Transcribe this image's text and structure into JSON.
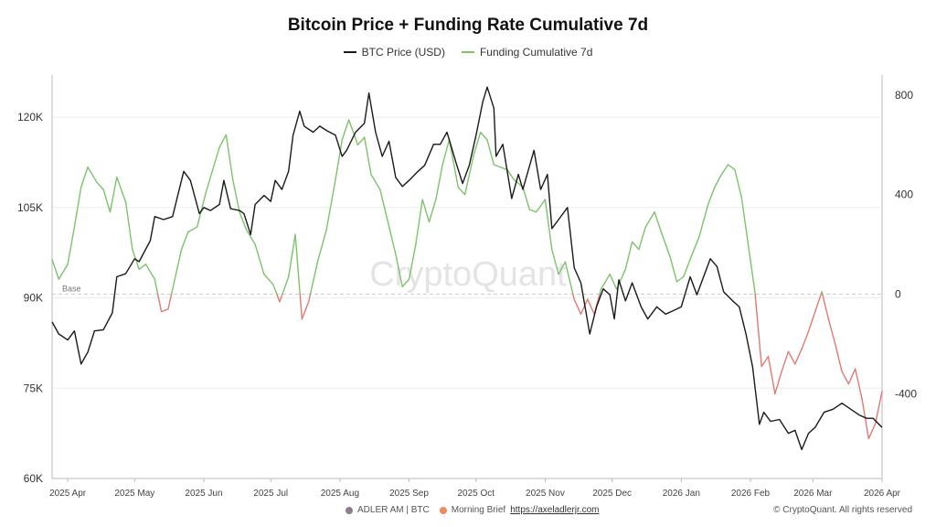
{
  "header": {
    "title": "Bitcoin Price + Funding Rate Cumulative 7d"
  },
  "legend": [
    {
      "label": "BTC Price (USD)",
      "color": "#1a1a1a"
    },
    {
      "label": "Funding Cumulative 7d",
      "color": "#7cc36a"
    }
  ],
  "watermark": "CryptoQuant",
  "base_label": "Base",
  "footer": {
    "author": "ADLER AM | BTC",
    "brief": "Morning Brief",
    "link": "https://axeladlerjr.com",
    "copyright": "© CryptoQuant. All rights reserved"
  },
  "colors": {
    "price": "#1a1a1a",
    "funding_positive": "#7cc36a",
    "funding_negative": "#e07a72",
    "grid": "#eeeeee",
    "base": "#cccccc"
  },
  "chart_data": {
    "type": "line",
    "title": "Bitcoin Price + Funding Rate Cumulative 7d",
    "x_ticks": [
      "2025 Apr",
      "2025 May",
      "2025 Jun",
      "2025 Jul",
      "2025 Aug",
      "2025 Sep",
      "2025 Oct",
      "2025 Nov",
      "2025 Dec",
      "2026 Jan",
      "2026 Feb",
      "2026 Mar",
      "2026 Apr"
    ],
    "y_left": {
      "ticks": [
        "60K",
        "75K",
        "90K",
        "105K",
        "120K"
      ],
      "values": [
        60000,
        75000,
        90000,
        105000,
        120000
      ],
      "range": [
        60000,
        127000
      ]
    },
    "y_right": {
      "ticks": [
        "-400",
        "0",
        "400",
        "800"
      ],
      "values": [
        -400,
        0,
        400,
        800
      ],
      "range": [
        -740,
        880
      ]
    },
    "base_line": 0,
    "x_range": [
      "2025-03-25",
      "2026-04-01"
    ],
    "series": [
      {
        "name": "BTC Price (USD)",
        "axis": "left",
        "points": [
          [
            "2025-03-25",
            86000
          ],
          [
            "2025-03-28",
            84000
          ],
          [
            "2025-04-01",
            83000
          ],
          [
            "2025-04-04",
            84500
          ],
          [
            "2025-04-07",
            79000
          ],
          [
            "2025-04-10",
            81000
          ],
          [
            "2025-04-13",
            84500
          ],
          [
            "2025-04-17",
            84700
          ],
          [
            "2025-04-21",
            87500
          ],
          [
            "2025-04-23",
            93500
          ],
          [
            "2025-04-27",
            94000
          ],
          [
            "2025-05-01",
            96500
          ],
          [
            "2025-05-03",
            96000
          ],
          [
            "2025-05-08",
            99500
          ],
          [
            "2025-05-10",
            103500
          ],
          [
            "2025-05-14",
            103000
          ],
          [
            "2025-05-18",
            103500
          ],
          [
            "2025-05-21",
            108000
          ],
          [
            "2025-05-23",
            111000
          ],
          [
            "2025-05-26",
            109500
          ],
          [
            "2025-05-30",
            104000
          ],
          [
            "2025-06-01",
            105000
          ],
          [
            "2025-06-04",
            104500
          ],
          [
            "2025-06-08",
            105500
          ],
          [
            "2025-06-10",
            109500
          ],
          [
            "2025-06-13",
            104800
          ],
          [
            "2025-06-17",
            104500
          ],
          [
            "2025-06-19",
            104000
          ],
          [
            "2025-06-22",
            100500
          ],
          [
            "2025-06-24",
            105500
          ],
          [
            "2025-06-28",
            107000
          ],
          [
            "2025-07-01",
            106000
          ],
          [
            "2025-07-03",
            109500
          ],
          [
            "2025-07-06",
            108000
          ],
          [
            "2025-07-09",
            111000
          ],
          [
            "2025-07-11",
            117000
          ],
          [
            "2025-07-14",
            121000
          ],
          [
            "2025-07-16",
            118500
          ],
          [
            "2025-07-20",
            117500
          ],
          [
            "2025-07-23",
            118500
          ],
          [
            "2025-07-26",
            117800
          ],
          [
            "2025-07-30",
            117000
          ],
          [
            "2025-08-02",
            113500
          ],
          [
            "2025-08-04",
            114500
          ],
          [
            "2025-08-08",
            117500
          ],
          [
            "2025-08-12",
            119000
          ],
          [
            "2025-08-14",
            124000
          ],
          [
            "2025-08-17",
            117500
          ],
          [
            "2025-08-20",
            113500
          ],
          [
            "2025-08-23",
            116000
          ],
          [
            "2025-08-26",
            110000
          ],
          [
            "2025-08-29",
            108500
          ],
          [
            "2025-09-01",
            109500
          ],
          [
            "2025-09-05",
            111000
          ],
          [
            "2025-09-08",
            112000
          ],
          [
            "2025-09-12",
            115500
          ],
          [
            "2025-09-15",
            115500
          ],
          [
            "2025-09-18",
            117500
          ],
          [
            "2025-09-22",
            112500
          ],
          [
            "2025-09-25",
            109000
          ],
          [
            "2025-09-28",
            112000
          ],
          [
            "2025-10-01",
            117000
          ],
          [
            "2025-10-04",
            122500
          ],
          [
            "2025-10-06",
            125000
          ],
          [
            "2025-10-09",
            121500
          ],
          [
            "2025-10-10",
            113500
          ],
          [
            "2025-10-13",
            115500
          ],
          [
            "2025-10-17",
            106500
          ],
          [
            "2025-10-20",
            110500
          ],
          [
            "2025-10-22",
            108000
          ],
          [
            "2025-10-27",
            114500
          ],
          [
            "2025-10-30",
            108000
          ],
          [
            "2025-11-02",
            110500
          ],
          [
            "2025-11-04",
            101500
          ],
          [
            "2025-11-07",
            103000
          ],
          [
            "2025-11-11",
            105000
          ],
          [
            "2025-11-14",
            95000
          ],
          [
            "2025-11-17",
            92500
          ],
          [
            "2025-11-21",
            84000
          ],
          [
            "2025-11-24",
            88500
          ],
          [
            "2025-11-27",
            91500
          ],
          [
            "2025-11-30",
            90500
          ],
          [
            "2025-12-02",
            86500
          ],
          [
            "2025-12-04",
            93000
          ],
          [
            "2025-12-07",
            89500
          ],
          [
            "2025-12-10",
            92500
          ],
          [
            "2025-12-14",
            88500
          ],
          [
            "2025-12-17",
            86500
          ],
          [
            "2025-12-21",
            88500
          ],
          [
            "2025-12-25",
            87300
          ],
          [
            "2025-12-28",
            87800
          ],
          [
            "2026-01-01",
            88500
          ],
          [
            "2026-01-05",
            93500
          ],
          [
            "2026-01-08",
            90500
          ],
          [
            "2026-01-14",
            96500
          ],
          [
            "2026-01-17",
            95200
          ],
          [
            "2026-01-20",
            91000
          ],
          [
            "2026-01-24",
            89500
          ],
          [
            "2026-01-27",
            88500
          ],
          [
            "2026-01-30",
            84000
          ],
          [
            "2026-02-02",
            78500
          ],
          [
            "2026-02-05",
            69000
          ],
          [
            "2026-02-07",
            71000
          ],
          [
            "2026-02-10",
            69500
          ],
          [
            "2026-02-14",
            69800
          ],
          [
            "2026-02-18",
            67500
          ],
          [
            "2026-02-21",
            68000
          ],
          [
            "2026-02-24",
            64800
          ],
          [
            "2026-02-27",
            67500
          ],
          [
            "2026-03-02",
            68500
          ],
          [
            "2026-03-06",
            71000
          ],
          [
            "2026-03-10",
            71500
          ],
          [
            "2026-03-14",
            72500
          ],
          [
            "2026-03-18",
            71500
          ],
          [
            "2026-03-22",
            70500
          ],
          [
            "2026-03-25",
            70000
          ],
          [
            "2026-03-28",
            70000
          ],
          [
            "2026-04-01",
            68500
          ]
        ]
      },
      {
        "name": "Funding Cumulative 7d",
        "axis": "right",
        "points": [
          [
            "2025-03-25",
            140
          ],
          [
            "2025-03-28",
            60
          ],
          [
            "2025-04-01",
            120
          ],
          [
            "2025-04-04",
            270
          ],
          [
            "2025-04-07",
            430
          ],
          [
            "2025-04-10",
            510
          ],
          [
            "2025-04-14",
            450
          ],
          [
            "2025-04-17",
            420
          ],
          [
            "2025-04-20",
            330
          ],
          [
            "2025-04-23",
            470
          ],
          [
            "2025-04-27",
            370
          ],
          [
            "2025-04-30",
            180
          ],
          [
            "2025-05-03",
            100
          ],
          [
            "2025-05-06",
            120
          ],
          [
            "2025-05-10",
            60
          ],
          [
            "2025-05-13",
            -70
          ],
          [
            "2025-05-16",
            -60
          ],
          [
            "2025-05-19",
            60
          ],
          [
            "2025-05-22",
            180
          ],
          [
            "2025-05-25",
            250
          ],
          [
            "2025-05-29",
            270
          ],
          [
            "2025-06-02",
            410
          ],
          [
            "2025-06-05",
            500
          ],
          [
            "2025-06-08",
            590
          ],
          [
            "2025-06-11",
            640
          ],
          [
            "2025-06-14",
            460
          ],
          [
            "2025-06-17",
            330
          ],
          [
            "2025-06-20",
            260
          ],
          [
            "2025-06-24",
            200
          ],
          [
            "2025-06-28",
            80
          ],
          [
            "2025-07-02",
            40
          ],
          [
            "2025-07-05",
            -30
          ],
          [
            "2025-07-09",
            70
          ],
          [
            "2025-07-12",
            240
          ],
          [
            "2025-07-15",
            -100
          ],
          [
            "2025-07-18",
            -30
          ],
          [
            "2025-07-22",
            130
          ],
          [
            "2025-07-26",
            260
          ],
          [
            "2025-07-30",
            460
          ],
          [
            "2025-08-02",
            620
          ],
          [
            "2025-08-05",
            700
          ],
          [
            "2025-08-09",
            600
          ],
          [
            "2025-08-12",
            630
          ],
          [
            "2025-08-15",
            480
          ],
          [
            "2025-08-19",
            420
          ],
          [
            "2025-08-22",
            310
          ],
          [
            "2025-08-26",
            160
          ],
          [
            "2025-08-29",
            30
          ],
          [
            "2025-09-01",
            60
          ],
          [
            "2025-09-04",
            200
          ],
          [
            "2025-09-07",
            380
          ],
          [
            "2025-09-10",
            290
          ],
          [
            "2025-09-13",
            380
          ],
          [
            "2025-09-16",
            520
          ],
          [
            "2025-09-19",
            620
          ],
          [
            "2025-09-23",
            430
          ],
          [
            "2025-09-26",
            400
          ],
          [
            "2025-09-30",
            560
          ],
          [
            "2025-10-03",
            650
          ],
          [
            "2025-10-06",
            620
          ],
          [
            "2025-10-09",
            520
          ],
          [
            "2025-10-12",
            510
          ],
          [
            "2025-10-15",
            500
          ],
          [
            "2025-10-18",
            460
          ],
          [
            "2025-10-22",
            430
          ],
          [
            "2025-10-25",
            340
          ],
          [
            "2025-10-28",
            330
          ],
          [
            "2025-11-01",
            380
          ],
          [
            "2025-11-04",
            180
          ],
          [
            "2025-11-07",
            80
          ],
          [
            "2025-11-10",
            130
          ],
          [
            "2025-11-14",
            -20
          ],
          [
            "2025-11-17",
            -80
          ],
          [
            "2025-11-20",
            -20
          ],
          [
            "2025-11-23",
            -80
          ],
          [
            "2025-11-26",
            20
          ],
          [
            "2025-11-30",
            80
          ],
          [
            "2025-12-03",
            20
          ],
          [
            "2025-12-07",
            100
          ],
          [
            "2025-12-10",
            210
          ],
          [
            "2025-12-13",
            180
          ],
          [
            "2025-12-16",
            270
          ],
          [
            "2025-12-20",
            330
          ],
          [
            "2025-12-23",
            250
          ],
          [
            "2025-12-27",
            150
          ],
          [
            "2025-12-30",
            50
          ],
          [
            "2026-01-02",
            70
          ],
          [
            "2026-01-05",
            140
          ],
          [
            "2026-01-09",
            230
          ],
          [
            "2026-01-13",
            360
          ],
          [
            "2026-01-16",
            430
          ],
          [
            "2026-01-19",
            480
          ],
          [
            "2026-01-22",
            520
          ],
          [
            "2026-01-25",
            500
          ],
          [
            "2026-01-28",
            390
          ],
          [
            "2026-01-31",
            200
          ],
          [
            "2026-02-03",
            10
          ],
          [
            "2026-02-06",
            -290
          ],
          [
            "2026-02-09",
            -250
          ],
          [
            "2026-02-12",
            -400
          ],
          [
            "2026-02-15",
            -310
          ],
          [
            "2026-02-18",
            -230
          ],
          [
            "2026-02-21",
            -280
          ],
          [
            "2026-02-24",
            -220
          ],
          [
            "2026-02-27",
            -150
          ],
          [
            "2026-03-02",
            -70
          ],
          [
            "2026-03-05",
            10
          ],
          [
            "2026-03-08",
            -100
          ],
          [
            "2026-03-11",
            -200
          ],
          [
            "2026-03-14",
            -310
          ],
          [
            "2026-03-17",
            -360
          ],
          [
            "2026-03-20",
            -300
          ],
          [
            "2026-03-23",
            -420
          ],
          [
            "2026-03-26",
            -580
          ],
          [
            "2026-03-29",
            -520
          ],
          [
            "2026-04-01",
            -390
          ]
        ]
      }
    ]
  }
}
